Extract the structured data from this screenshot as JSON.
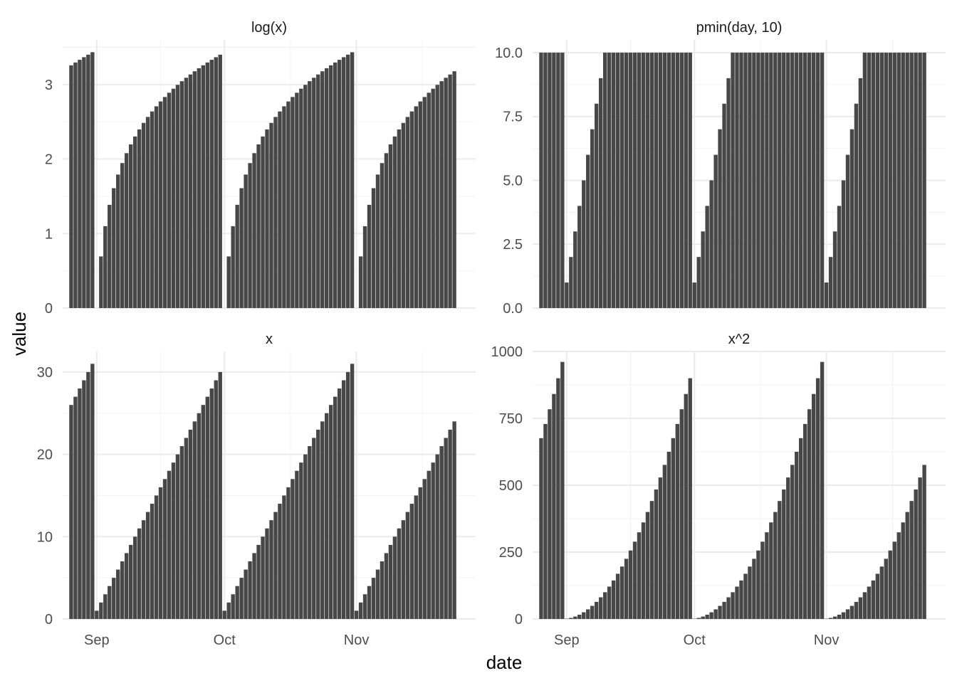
{
  "chart_data": {
    "type": "bar",
    "layout": "facet_wrap 2x2, free y scales, shared x",
    "xlabel": "date",
    "ylabel": "value",
    "x_breaks": [
      "2023-09-01",
      "2023-10-01",
      "2023-11-01"
    ],
    "x_break_labels": [
      "Sep",
      "Oct",
      "Nov"
    ],
    "xlim": [
      "2023-08-24",
      "2023-11-29"
    ],
    "grid": true,
    "bar_color": "#474747",
    "facets": [
      {
        "title": "log(x)",
        "x_start": "2023-08-26",
        "x_end": "2023-11-26",
        "ylim": [
          0,
          3.6
        ],
        "y_breaks": [
          0,
          1,
          2,
          3
        ],
        "y_labels": [
          "0",
          "1",
          "2",
          "3"
        ],
        "values": [
          3.258,
          3.296,
          3.332,
          3.367,
          3.401,
          3.434,
          0,
          0.693,
          1.099,
          1.386,
          1.609,
          1.792,
          1.946,
          2.079,
          2.197,
          2.303,
          2.398,
          2.485,
          2.565,
          2.639,
          2.708,
          2.773,
          2.833,
          2.89,
          2.944,
          2.996,
          3.045,
          3.091,
          3.135,
          3.178,
          3.219,
          3.258,
          3.296,
          3.332,
          3.367,
          3.401,
          0,
          0.693,
          1.099,
          1.386,
          1.609,
          1.792,
          1.946,
          2.079,
          2.197,
          2.303,
          2.398,
          2.485,
          2.565,
          2.639,
          2.708,
          2.773,
          2.833,
          2.89,
          2.944,
          2.996,
          3.045,
          3.091,
          3.135,
          3.178,
          3.219,
          3.258,
          3.296,
          3.332,
          3.367,
          3.401,
          3.434,
          0,
          0.693,
          1.099,
          1.386,
          1.609,
          1.792,
          1.946,
          2.079,
          2.197,
          2.303,
          2.398,
          2.485,
          2.565,
          2.639,
          2.708,
          2.773,
          2.833,
          2.89,
          2.944,
          2.996,
          3.045,
          3.091,
          3.135,
          3.178
        ]
      },
      {
        "title": "pmin(day, 10)",
        "x_start": "2023-08-26",
        "x_end": "2023-11-26",
        "ylim": [
          0,
          10.5
        ],
        "y_breaks": [
          0,
          2.5,
          5,
          7.5,
          10
        ],
        "y_labels": [
          "0.0",
          "2.5",
          "5.0",
          "7.5",
          "10.0"
        ],
        "values": [
          10,
          10,
          10,
          10,
          10,
          10,
          1,
          2,
          3,
          4,
          5,
          6,
          7,
          8,
          9,
          10,
          10,
          10,
          10,
          10,
          10,
          10,
          10,
          10,
          10,
          10,
          10,
          10,
          10,
          10,
          10,
          10,
          10,
          10,
          10,
          10,
          1,
          2,
          3,
          4,
          5,
          6,
          7,
          8,
          9,
          10,
          10,
          10,
          10,
          10,
          10,
          10,
          10,
          10,
          10,
          10,
          10,
          10,
          10,
          10,
          10,
          10,
          10,
          10,
          10,
          10,
          10,
          1,
          2,
          3,
          4,
          5,
          6,
          7,
          8,
          9,
          10,
          10,
          10,
          10,
          10,
          10,
          10,
          10,
          10,
          10,
          10,
          10,
          10,
          10,
          10
        ]
      },
      {
        "title": "x",
        "x_start": "2023-08-26",
        "x_end": "2023-11-26",
        "ylim": [
          0,
          32.5
        ],
        "y_breaks": [
          0,
          10,
          20,
          30
        ],
        "y_labels": [
          "0",
          "10",
          "20",
          "30"
        ],
        "values": [
          26,
          27,
          28,
          29,
          30,
          31,
          1,
          2,
          3,
          4,
          5,
          6,
          7,
          8,
          9,
          10,
          11,
          12,
          13,
          14,
          15,
          16,
          17,
          18,
          19,
          20,
          21,
          22,
          23,
          24,
          25,
          26,
          27,
          28,
          29,
          30,
          1,
          2,
          3,
          4,
          5,
          6,
          7,
          8,
          9,
          10,
          11,
          12,
          13,
          14,
          15,
          16,
          17,
          18,
          19,
          20,
          21,
          22,
          23,
          24,
          25,
          26,
          27,
          28,
          29,
          30,
          31,
          1,
          2,
          3,
          4,
          5,
          6,
          7,
          8,
          9,
          10,
          11,
          12,
          13,
          14,
          15,
          16,
          17,
          18,
          19,
          20,
          21,
          22,
          23,
          24
        ]
      },
      {
        "title": "x^2",
        "x_start": "2023-08-26",
        "x_end": "2023-11-26",
        "ylim": [
          0,
          1000
        ],
        "y_breaks": [
          0,
          250,
          500,
          750,
          1000
        ],
        "y_labels": [
          "0",
          "250",
          "500",
          "750",
          "1000"
        ],
        "values": [
          676,
          729,
          784,
          841,
          900,
          961,
          1,
          4,
          9,
          16,
          25,
          36,
          49,
          64,
          81,
          100,
          121,
          144,
          169,
          196,
          225,
          256,
          289,
          324,
          361,
          400,
          441,
          484,
          529,
          576,
          625,
          676,
          729,
          784,
          841,
          900,
          1,
          4,
          9,
          16,
          25,
          36,
          49,
          64,
          81,
          100,
          121,
          144,
          169,
          196,
          225,
          256,
          289,
          324,
          361,
          400,
          441,
          484,
          529,
          576,
          625,
          676,
          729,
          784,
          841,
          900,
          961,
          1,
          4,
          9,
          16,
          25,
          36,
          49,
          64,
          81,
          100,
          121,
          144,
          169,
          196,
          225,
          256,
          289,
          324,
          361,
          400,
          441,
          484,
          529,
          576
        ]
      }
    ]
  }
}
